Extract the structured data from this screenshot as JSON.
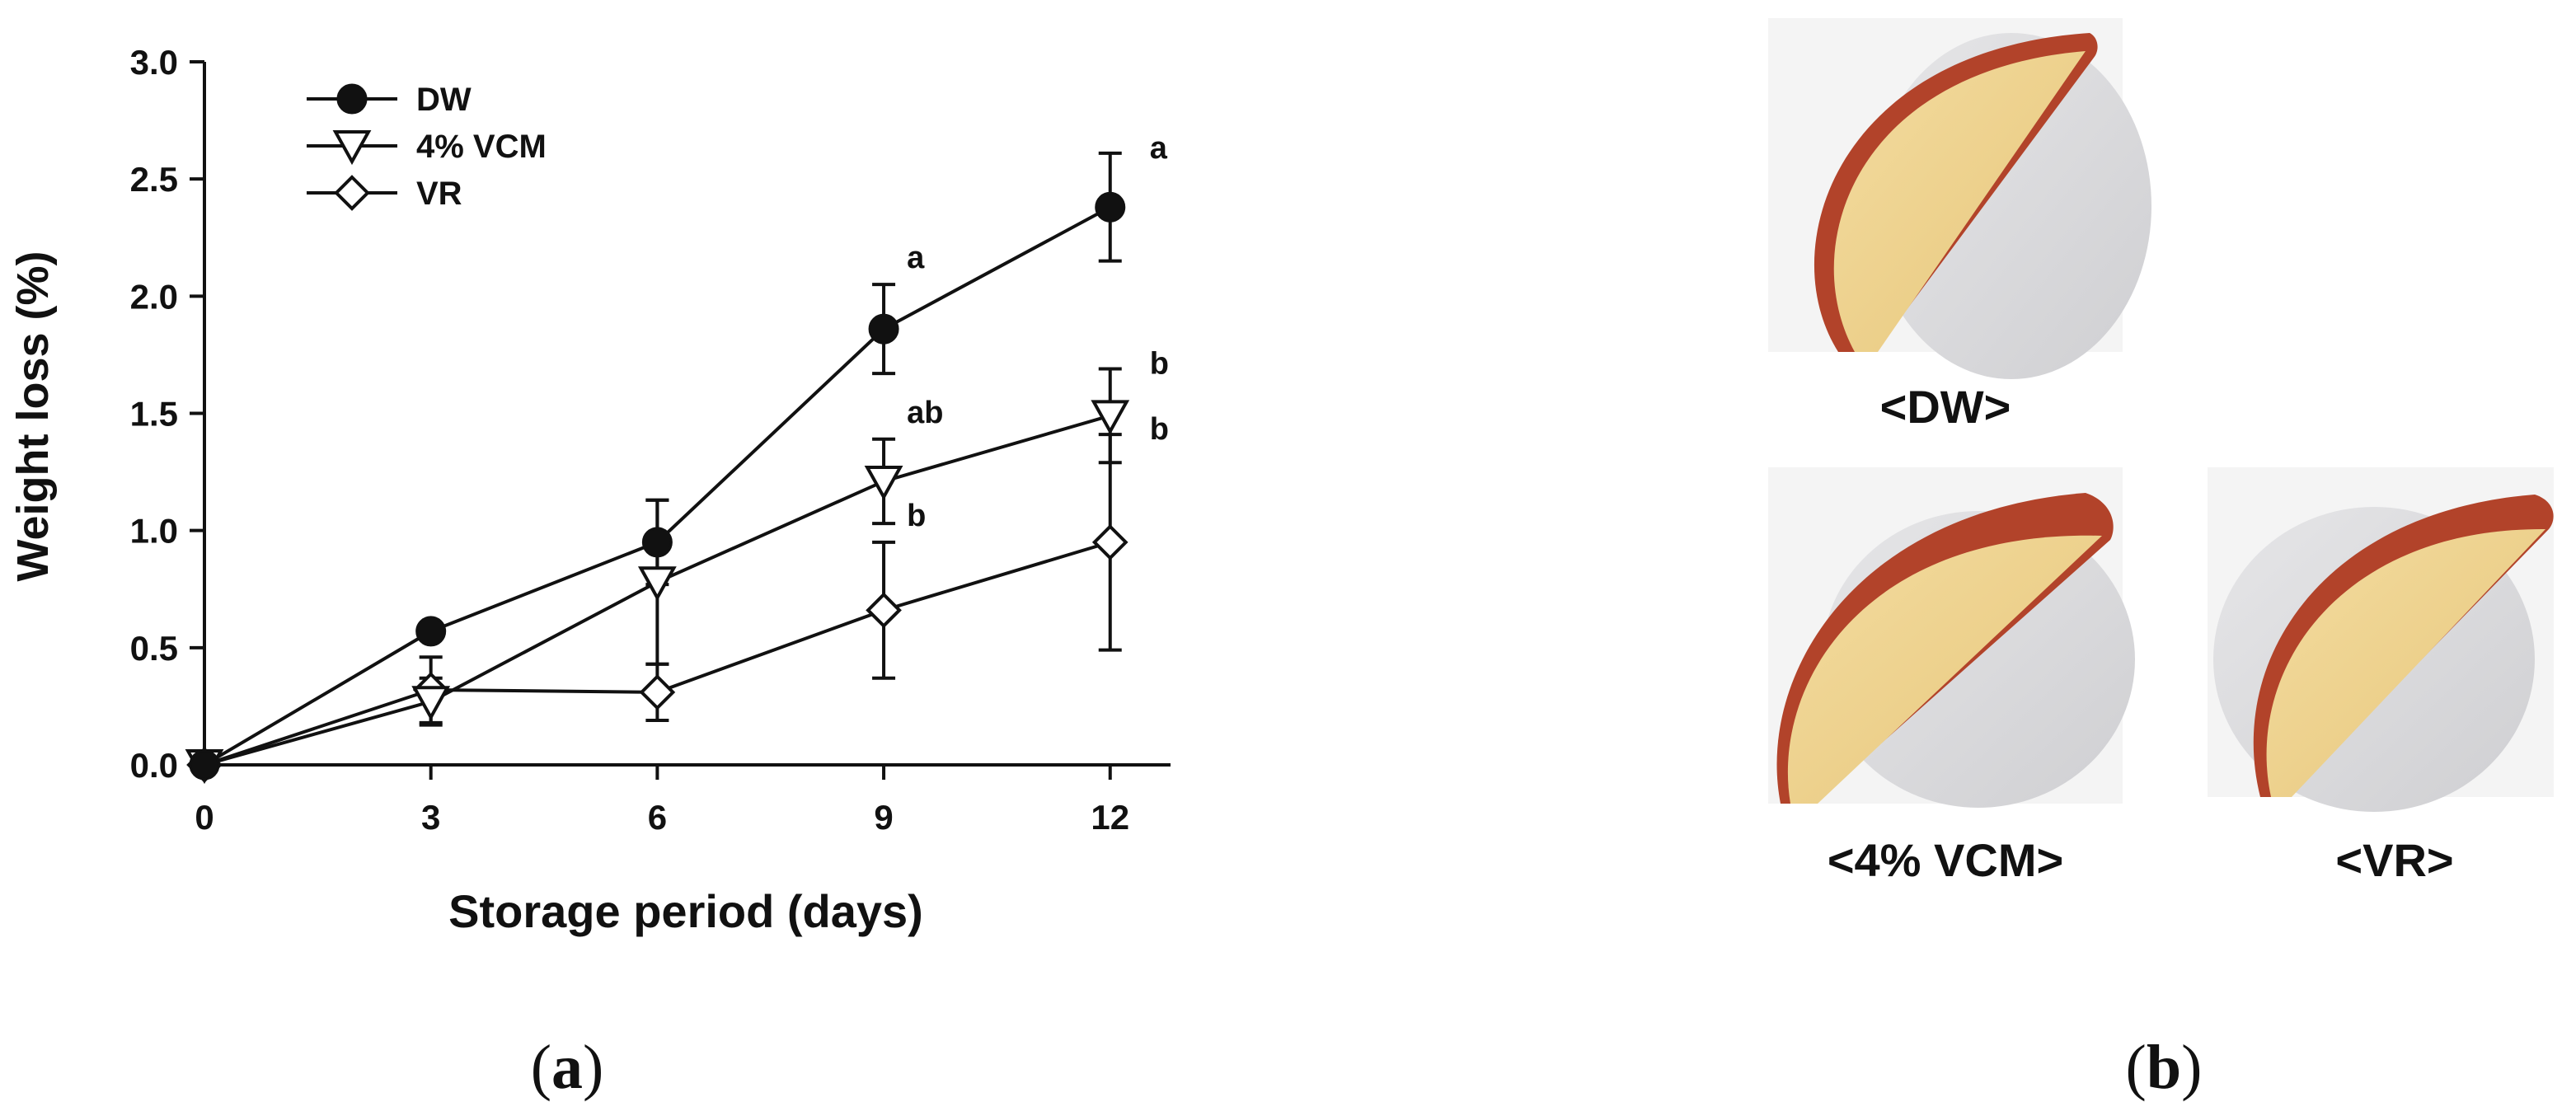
{
  "chart_data": {
    "type": "line",
    "xlabel": "Storage period (days)",
    "ylabel": "Weight loss (%)",
    "x": [
      0,
      3,
      6,
      9,
      12
    ],
    "xlim": [
      0,
      12.8
    ],
    "ylim": [
      0,
      3.0
    ],
    "xticks": [
      "0",
      "3",
      "6",
      "9",
      "12"
    ],
    "yticks": [
      "0.0",
      "0.5",
      "1.0",
      "1.5",
      "2.0",
      "2.5",
      "3.0"
    ],
    "legend_position": "top-left",
    "series": [
      {
        "name": "DW",
        "marker": "filled-circle",
        "values": [
          0.0,
          0.57,
          0.95,
          1.86,
          2.38
        ],
        "errors": [
          0.0,
          0.03,
          0.18,
          0.19,
          0.23
        ],
        "letters": [
          "",
          "",
          "",
          "a",
          "a"
        ]
      },
      {
        "name": "4% VCM",
        "marker": "open-triangle-down",
        "values": [
          0.0,
          0.27,
          0.78,
          1.21,
          1.49
        ],
        "errors": [
          0.0,
          0.1,
          0.35,
          0.18,
          0.2
        ],
        "letters": [
          "",
          "",
          "",
          "ab",
          "b"
        ]
      },
      {
        "name": "VR",
        "marker": "open-diamond",
        "values": [
          0.0,
          0.32,
          0.31,
          0.66,
          0.95
        ],
        "errors": [
          0.0,
          0.14,
          0.12,
          0.29,
          0.46
        ],
        "letters": [
          "",
          "",
          "",
          "b",
          "b"
        ]
      }
    ]
  },
  "panel_a": {
    "label_open": "(",
    "label_letter": "a",
    "label_close": ")"
  },
  "panel_b": {
    "label_open": "(",
    "label_letter": "b",
    "label_close": ")",
    "photos": [
      {
        "label": "<DW>"
      },
      {
        "label": "<4% VCM>"
      },
      {
        "label": "<VR>"
      }
    ]
  },
  "colors": {
    "line": "#111111",
    "apple_flesh": "#ecd18a",
    "apple_skin": "#b2432a",
    "plate": "#d9d9da"
  }
}
